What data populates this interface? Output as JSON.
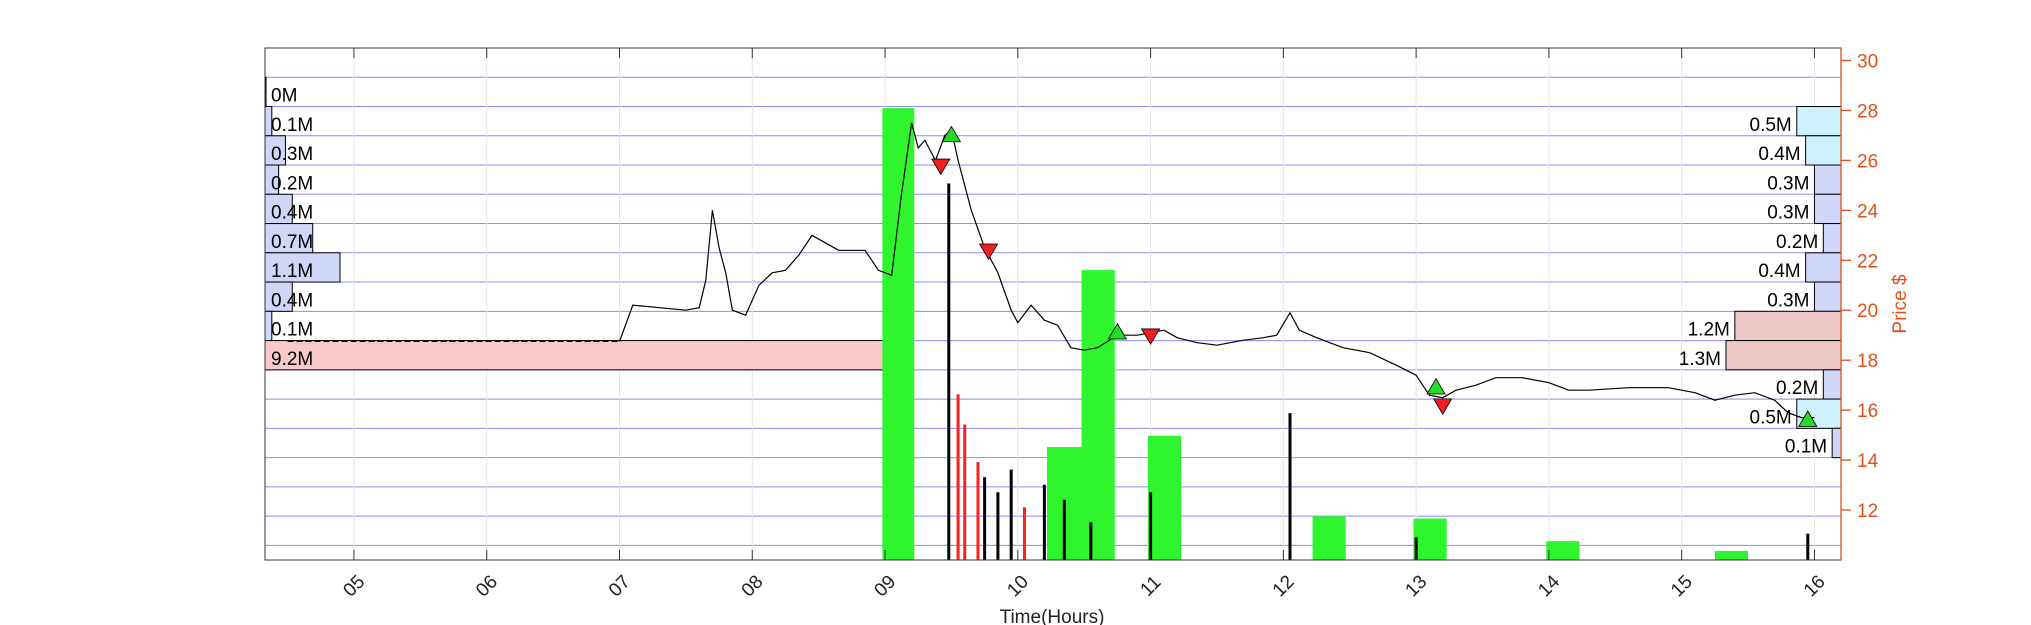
{
  "chart_data": {
    "type": "line",
    "xlabel": "Time(Hours)",
    "ylabel": "Price $",
    "x_ticks": [
      "05",
      "06",
      "07",
      "08",
      "09",
      "10",
      "11",
      "12",
      "13",
      "14",
      "15",
      "16"
    ],
    "xlim": [
      4.33,
      16.2
    ],
    "y_ticks": [
      12,
      14,
      16,
      18,
      20,
      22,
      24,
      26,
      28,
      30
    ],
    "ylim": [
      10.0,
      30.5
    ],
    "grid": true,
    "price_series": {
      "name": "",
      "color": "#000000",
      "points": [
        [
          7.0,
          18.75
        ],
        [
          7.1,
          20.2
        ],
        [
          7.5,
          20.0
        ],
        [
          7.6,
          20.1
        ],
        [
          7.65,
          21.2
        ],
        [
          7.7,
          24.0
        ],
        [
          7.75,
          22.5
        ],
        [
          7.8,
          21.5
        ],
        [
          7.85,
          20.0
        ],
        [
          7.95,
          19.8
        ],
        [
          8.05,
          21.0
        ],
        [
          8.15,
          21.5
        ],
        [
          8.25,
          21.6
        ],
        [
          8.35,
          22.2
        ],
        [
          8.45,
          23.0
        ],
        [
          8.55,
          22.7
        ],
        [
          8.65,
          22.4
        ],
        [
          8.75,
          22.4
        ],
        [
          8.85,
          22.4
        ],
        [
          8.95,
          21.6
        ],
        [
          9.05,
          21.4
        ],
        [
          9.12,
          24.5
        ],
        [
          9.2,
          27.5
        ],
        [
          9.25,
          26.5
        ],
        [
          9.3,
          26.8
        ],
        [
          9.38,
          26.0
        ],
        [
          9.45,
          27.0
        ],
        [
          9.5,
          27.2
        ],
        [
          9.55,
          26.0
        ],
        [
          9.65,
          24.0
        ],
        [
          9.75,
          22.5
        ],
        [
          9.85,
          21.5
        ],
        [
          9.95,
          20.0
        ],
        [
          10.0,
          19.5
        ],
        [
          10.1,
          20.2
        ],
        [
          10.2,
          19.6
        ],
        [
          10.3,
          19.4
        ],
        [
          10.4,
          18.5
        ],
        [
          10.5,
          18.4
        ],
        [
          10.6,
          18.5
        ],
        [
          10.75,
          19.0
        ],
        [
          10.9,
          19.0
        ],
        [
          11.0,
          19.1
        ],
        [
          11.1,
          19.2
        ],
        [
          11.2,
          18.9
        ],
        [
          11.35,
          18.7
        ],
        [
          11.5,
          18.6
        ],
        [
          11.7,
          18.8
        ],
        [
          11.85,
          18.9
        ],
        [
          11.95,
          19.0
        ],
        [
          12.05,
          19.9
        ],
        [
          12.12,
          19.2
        ],
        [
          12.25,
          18.9
        ],
        [
          12.45,
          18.5
        ],
        [
          12.65,
          18.3
        ],
        [
          12.85,
          17.8
        ],
        [
          13.0,
          17.4
        ],
        [
          13.1,
          16.6
        ],
        [
          13.2,
          16.5
        ],
        [
          13.3,
          16.8
        ],
        [
          13.45,
          17.0
        ],
        [
          13.6,
          17.3
        ],
        [
          13.8,
          17.3
        ],
        [
          14.0,
          17.1
        ],
        [
          14.15,
          16.8
        ],
        [
          14.3,
          16.8
        ],
        [
          14.6,
          16.9
        ],
        [
          14.9,
          16.9
        ],
        [
          15.1,
          16.7
        ],
        [
          15.25,
          16.4
        ],
        [
          15.4,
          16.6
        ],
        [
          15.55,
          16.7
        ],
        [
          15.7,
          16.4
        ],
        [
          15.8,
          15.9
        ],
        [
          15.9,
          15.7
        ],
        [
          16.0,
          15.7
        ]
      ]
    },
    "flat_premarket": {
      "x0": 4.5,
      "x1": 7.0,
      "y": 18.75
    },
    "volume_axis": {
      "max": 6.5
    },
    "volume_blocks": [
      {
        "x0": 8.98,
        "x1": 9.22,
        "value": 6.0,
        "color": "#2ef52e"
      },
      {
        "x0": 10.22,
        "x1": 10.48,
        "value": 1.5,
        "color": "#2ef52e"
      },
      {
        "x0": 10.48,
        "x1": 10.73,
        "value": 3.85,
        "color": "#2ef52e"
      },
      {
        "x0": 10.98,
        "x1": 11.23,
        "value": 1.65,
        "color": "#2ef52e"
      },
      {
        "x0": 12.22,
        "x1": 12.47,
        "value": 0.58,
        "color": "#2ef52e"
      },
      {
        "x0": 12.98,
        "x1": 13.23,
        "value": 0.55,
        "color": "#2ef52e"
      },
      {
        "x0": 13.98,
        "x1": 14.23,
        "value": 0.25,
        "color": "#2ef52e"
      },
      {
        "x0": 15.25,
        "x1": 15.5,
        "value": 0.12,
        "color": "#2ef52e"
      }
    ],
    "volume_spikes": [
      {
        "x": 9.48,
        "value": 5.0,
        "color": "#000000"
      },
      {
        "x": 9.55,
        "value": 2.2,
        "color": "#ff2020"
      },
      {
        "x": 9.6,
        "value": 1.8,
        "color": "#ff2020"
      },
      {
        "x": 9.7,
        "value": 1.3,
        "color": "#ff2020"
      },
      {
        "x": 9.75,
        "value": 1.1,
        "color": "#000000"
      },
      {
        "x": 9.85,
        "value": 0.9,
        "color": "#000000"
      },
      {
        "x": 9.95,
        "value": 1.2,
        "color": "#000000"
      },
      {
        "x": 10.05,
        "value": 0.7,
        "color": "#ff2020"
      },
      {
        "x": 10.2,
        "value": 1.0,
        "color": "#000000"
      },
      {
        "x": 10.35,
        "value": 0.8,
        "color": "#000000"
      },
      {
        "x": 10.55,
        "value": 0.5,
        "color": "#000000"
      },
      {
        "x": 11.0,
        "value": 0.9,
        "color": "#000000"
      },
      {
        "x": 12.05,
        "value": 1.95,
        "color": "#000000"
      },
      {
        "x": 13.0,
        "value": 0.3,
        "color": "#000000"
      },
      {
        "x": 15.95,
        "value": 0.35,
        "color": "#000000"
      }
    ],
    "buy_markers": [
      [
        9.5,
        27.0
      ],
      [
        10.75,
        19.1
      ],
      [
        13.15,
        16.9
      ],
      [
        15.95,
        15.6
      ]
    ],
    "sell_markers": [
      [
        9.42,
        25.8
      ],
      [
        9.78,
        22.4
      ],
      [
        11.0,
        19.0
      ],
      [
        13.2,
        16.2
      ]
    ],
    "left_volume_profile": [
      {
        "label": "0M",
        "value": 0.0,
        "row": 1,
        "color": "#cfd6f7"
      },
      {
        "label": "0.1M",
        "value": 0.1,
        "row": 2,
        "color": "#cfd6f7"
      },
      {
        "label": "0.3M",
        "value": 0.3,
        "row": 3,
        "color": "#cfd6f7"
      },
      {
        "label": "0.2M",
        "value": 0.2,
        "row": 4,
        "color": "#cfd6f7"
      },
      {
        "label": "0.4M",
        "value": 0.4,
        "row": 5,
        "color": "#cfd6f7"
      },
      {
        "label": "0.7M",
        "value": 0.7,
        "row": 6,
        "color": "#cfd6f7"
      },
      {
        "label": "1.1M",
        "value": 1.1,
        "row": 7,
        "color": "#cfd6f7"
      },
      {
        "label": "0.4M",
        "value": 0.4,
        "row": 8,
        "color": "#cfd6f7"
      },
      {
        "label": "0.1M",
        "value": 0.1,
        "row": 9,
        "color": "#cfd6f7"
      },
      {
        "label": "9.2M",
        "value": 9.2,
        "row": 10,
        "color": "#f7c9c9"
      }
    ],
    "right_volume_profile": [
      {
        "label": "0.5M",
        "value": 0.5,
        "row": 2,
        "color": "#cdf1fb"
      },
      {
        "label": "0.4M",
        "value": 0.4,
        "row": 3,
        "color": "#cdf1fb"
      },
      {
        "label": "0.3M",
        "value": 0.3,
        "row": 4,
        "color": "#cfd6f7"
      },
      {
        "label": "0.3M",
        "value": 0.3,
        "row": 5,
        "color": "#cfd6f7"
      },
      {
        "label": "0.2M",
        "value": 0.2,
        "row": 6,
        "color": "#cfd6f7"
      },
      {
        "label": "0.4M",
        "value": 0.4,
        "row": 7,
        "color": "#cfd6f7"
      },
      {
        "label": "0.3M",
        "value": 0.3,
        "row": 8,
        "color": "#cfd6f7"
      },
      {
        "label": "1.2M",
        "value": 1.2,
        "row": 9,
        "color": "#efc6c6"
      },
      {
        "label": "1.3M",
        "value": 1.3,
        "row": 10,
        "color": "#efc6c6"
      },
      {
        "label": "0.2M",
        "value": 0.2,
        "row": 11,
        "color": "#cfd6f7"
      },
      {
        "label": "0.5M",
        "value": 0.5,
        "row": 12,
        "color": "#cdf1fb"
      },
      {
        "label": "0.1M",
        "value": 0.1,
        "row": 13,
        "color": "#cfd6f7"
      }
    ],
    "colors": {
      "price_axis": "#e0501b",
      "grid_blue": "#8b8bf0",
      "buy": "#22dd22",
      "sell": "#ee2020"
    }
  }
}
